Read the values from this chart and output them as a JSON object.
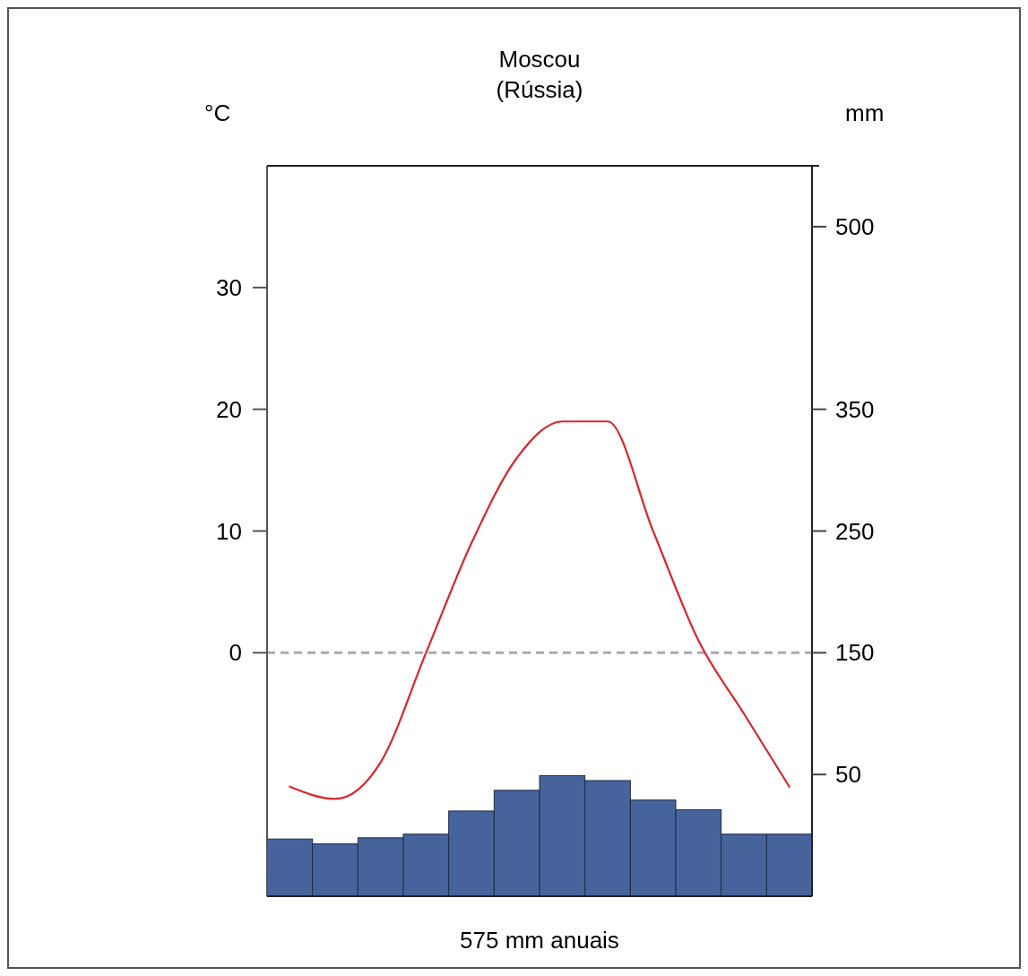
{
  "chart_data": {
    "type": "bar",
    "title": "Moscou",
    "subtitle": "(Rússia)",
    "ylabel": "°C",
    "y2label": "mm",
    "categories": [
      null,
      null,
      null,
      null,
      null,
      null,
      null,
      null,
      null,
      null,
      null,
      null
    ],
    "ylim": [
      -20,
      40
    ],
    "yticks": [
      0,
      10,
      20,
      30
    ],
    "y2lim": [
      -50,
      550
    ],
    "y2ticks": [
      50,
      150,
      250,
      350,
      500
    ],
    "series": [
      {
        "axis": "y2",
        "color": "#46639c",
        "base": [
          -50,
          -50,
          -50,
          -50,
          -50,
          -50,
          -50,
          -50,
          -50,
          -50,
          -50,
          -50
        ],
        "values": [
          47,
          43,
          48,
          51,
          70,
          87,
          99,
          95,
          79,
          71,
          51,
          51
        ]
      },
      {
        "type": "line",
        "color": "#d9262c",
        "values": [
          -11,
          -12,
          -9,
          0,
          9,
          16,
          19,
          19,
          10,
          1,
          -5,
          -11
        ]
      }
    ],
    "ref_lines": [
      {
        "axis": "y",
        "value": 0,
        "color": "#aaaaaa",
        "line_style": "dashed"
      }
    ],
    "annotations": [
      "575 mm anuais"
    ]
  }
}
